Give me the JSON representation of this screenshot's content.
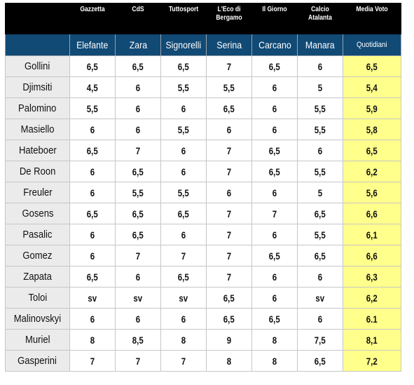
{
  "header": {
    "publications": [
      "Gazzetta",
      "CdS",
      "Tuttosport",
      "L'Eco di Bergamo",
      "Il Giorno",
      "Calcio Atalanta"
    ],
    "average_label": "Media Voto",
    "authors": [
      "Elefante",
      "Zara",
      "Signorelli",
      "Serina",
      "Carcano",
      "Manara"
    ],
    "average_sublabel": "Quotidiani"
  },
  "rows": [
    {
      "name": "Gollini",
      "votes": [
        "6,5",
        "6,5",
        "6,5",
        "7",
        "6,5",
        "6"
      ],
      "avg": "6,5"
    },
    {
      "name": "Djimsiti",
      "votes": [
        "4,5",
        "6",
        "5,5",
        "5,5",
        "6",
        "5"
      ],
      "avg": "5,4"
    },
    {
      "name": "Palomino",
      "votes": [
        "5,5",
        "6",
        "6",
        "6,5",
        "6",
        "5,5"
      ],
      "avg": "5,9"
    },
    {
      "name": "Masiello",
      "votes": [
        "6",
        "6",
        "5,5",
        "6",
        "6",
        "5,5"
      ],
      "avg": "5,8"
    },
    {
      "name": "Hateboer",
      "votes": [
        "6,5",
        "7",
        "6",
        "7",
        "6,5",
        "6"
      ],
      "avg": "6,5"
    },
    {
      "name": "De Roon",
      "votes": [
        "6",
        "6,5",
        "6",
        "7",
        "6,5",
        "5,5"
      ],
      "avg": "6,2"
    },
    {
      "name": "Freuler",
      "votes": [
        "6",
        "5,5",
        "5,5",
        "6",
        "6",
        "5"
      ],
      "avg": "5,6"
    },
    {
      "name": "Gosens",
      "votes": [
        "6,5",
        "6,5",
        "6,5",
        "7",
        "7",
        "6,5"
      ],
      "avg": "6,6"
    },
    {
      "name": "Pasalic",
      "votes": [
        "6",
        "6,5",
        "6",
        "7",
        "6",
        "5,5"
      ],
      "avg": "6,1"
    },
    {
      "name": "Gomez",
      "votes": [
        "6",
        "7",
        "7",
        "7",
        "6,5",
        "6,5"
      ],
      "avg": "6,6"
    },
    {
      "name": "Zapata",
      "votes": [
        "6,5",
        "6",
        "6,5",
        "7",
        "6",
        "6"
      ],
      "avg": "6,3"
    },
    {
      "name": "Toloi",
      "votes": [
        "sv",
        "sv",
        "sv",
        "6,5",
        "6",
        "sv"
      ],
      "avg": "6,2"
    },
    {
      "name": "Malinovskyi",
      "votes": [
        "6",
        "6",
        "6",
        "6,5",
        "6,5",
        "6"
      ],
      "avg": "6.1"
    },
    {
      "name": "Muriel",
      "votes": [
        "8",
        "8,5",
        "8",
        "9",
        "8",
        "7,5"
      ],
      "avg": "8,1"
    },
    {
      "name": "Gasperini",
      "votes": [
        "7",
        "7",
        "7",
        "8",
        "8",
        "6,5"
      ],
      "avg": "7,2"
    }
  ],
  "colors": {
    "header_bg": "#000000",
    "author_bg": "#114a75",
    "name_bg": "#ebebeb",
    "avg_bg": "#ffff8c"
  }
}
